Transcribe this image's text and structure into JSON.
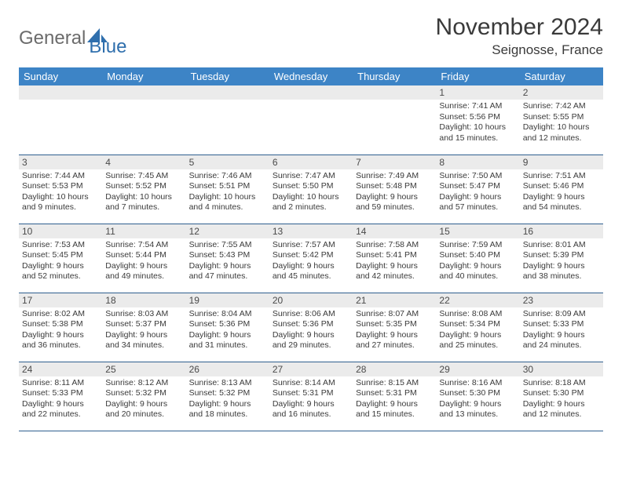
{
  "brand": {
    "part1": "General",
    "part2": "Blue"
  },
  "title": "November 2024",
  "location": "Seignosse, France",
  "colors": {
    "header_bg": "#3d84c6",
    "header_text": "#ffffff",
    "daynum_bg": "#ebebeb",
    "cell_border": "#2f5f8f",
    "text": "#3a3a3a",
    "brand_gray": "#6b6b6b",
    "brand_blue": "#2f6fad"
  },
  "weekdays": [
    "Sunday",
    "Monday",
    "Tuesday",
    "Wednesday",
    "Thursday",
    "Friday",
    "Saturday"
  ],
  "weeks": [
    [
      {},
      {},
      {},
      {},
      {},
      {
        "n": "1",
        "sunrise": "Sunrise: 7:41 AM",
        "sunset": "Sunset: 5:56 PM",
        "day1": "Daylight: 10 hours",
        "day2": "and 15 minutes."
      },
      {
        "n": "2",
        "sunrise": "Sunrise: 7:42 AM",
        "sunset": "Sunset: 5:55 PM",
        "day1": "Daylight: 10 hours",
        "day2": "and 12 minutes."
      }
    ],
    [
      {
        "n": "3",
        "sunrise": "Sunrise: 7:44 AM",
        "sunset": "Sunset: 5:53 PM",
        "day1": "Daylight: 10 hours",
        "day2": "and 9 minutes."
      },
      {
        "n": "4",
        "sunrise": "Sunrise: 7:45 AM",
        "sunset": "Sunset: 5:52 PM",
        "day1": "Daylight: 10 hours",
        "day2": "and 7 minutes."
      },
      {
        "n": "5",
        "sunrise": "Sunrise: 7:46 AM",
        "sunset": "Sunset: 5:51 PM",
        "day1": "Daylight: 10 hours",
        "day2": "and 4 minutes."
      },
      {
        "n": "6",
        "sunrise": "Sunrise: 7:47 AM",
        "sunset": "Sunset: 5:50 PM",
        "day1": "Daylight: 10 hours",
        "day2": "and 2 minutes."
      },
      {
        "n": "7",
        "sunrise": "Sunrise: 7:49 AM",
        "sunset": "Sunset: 5:48 PM",
        "day1": "Daylight: 9 hours",
        "day2": "and 59 minutes."
      },
      {
        "n": "8",
        "sunrise": "Sunrise: 7:50 AM",
        "sunset": "Sunset: 5:47 PM",
        "day1": "Daylight: 9 hours",
        "day2": "and 57 minutes."
      },
      {
        "n": "9",
        "sunrise": "Sunrise: 7:51 AM",
        "sunset": "Sunset: 5:46 PM",
        "day1": "Daylight: 9 hours",
        "day2": "and 54 minutes."
      }
    ],
    [
      {
        "n": "10",
        "sunrise": "Sunrise: 7:53 AM",
        "sunset": "Sunset: 5:45 PM",
        "day1": "Daylight: 9 hours",
        "day2": "and 52 minutes."
      },
      {
        "n": "11",
        "sunrise": "Sunrise: 7:54 AM",
        "sunset": "Sunset: 5:44 PM",
        "day1": "Daylight: 9 hours",
        "day2": "and 49 minutes."
      },
      {
        "n": "12",
        "sunrise": "Sunrise: 7:55 AM",
        "sunset": "Sunset: 5:43 PM",
        "day1": "Daylight: 9 hours",
        "day2": "and 47 minutes."
      },
      {
        "n": "13",
        "sunrise": "Sunrise: 7:57 AM",
        "sunset": "Sunset: 5:42 PM",
        "day1": "Daylight: 9 hours",
        "day2": "and 45 minutes."
      },
      {
        "n": "14",
        "sunrise": "Sunrise: 7:58 AM",
        "sunset": "Sunset: 5:41 PM",
        "day1": "Daylight: 9 hours",
        "day2": "and 42 minutes."
      },
      {
        "n": "15",
        "sunrise": "Sunrise: 7:59 AM",
        "sunset": "Sunset: 5:40 PM",
        "day1": "Daylight: 9 hours",
        "day2": "and 40 minutes."
      },
      {
        "n": "16",
        "sunrise": "Sunrise: 8:01 AM",
        "sunset": "Sunset: 5:39 PM",
        "day1": "Daylight: 9 hours",
        "day2": "and 38 minutes."
      }
    ],
    [
      {
        "n": "17",
        "sunrise": "Sunrise: 8:02 AM",
        "sunset": "Sunset: 5:38 PM",
        "day1": "Daylight: 9 hours",
        "day2": "and 36 minutes."
      },
      {
        "n": "18",
        "sunrise": "Sunrise: 8:03 AM",
        "sunset": "Sunset: 5:37 PM",
        "day1": "Daylight: 9 hours",
        "day2": "and 34 minutes."
      },
      {
        "n": "19",
        "sunrise": "Sunrise: 8:04 AM",
        "sunset": "Sunset: 5:36 PM",
        "day1": "Daylight: 9 hours",
        "day2": "and 31 minutes."
      },
      {
        "n": "20",
        "sunrise": "Sunrise: 8:06 AM",
        "sunset": "Sunset: 5:36 PM",
        "day1": "Daylight: 9 hours",
        "day2": "and 29 minutes."
      },
      {
        "n": "21",
        "sunrise": "Sunrise: 8:07 AM",
        "sunset": "Sunset: 5:35 PM",
        "day1": "Daylight: 9 hours",
        "day2": "and 27 minutes."
      },
      {
        "n": "22",
        "sunrise": "Sunrise: 8:08 AM",
        "sunset": "Sunset: 5:34 PM",
        "day1": "Daylight: 9 hours",
        "day2": "and 25 minutes."
      },
      {
        "n": "23",
        "sunrise": "Sunrise: 8:09 AM",
        "sunset": "Sunset: 5:33 PM",
        "day1": "Daylight: 9 hours",
        "day2": "and 24 minutes."
      }
    ],
    [
      {
        "n": "24",
        "sunrise": "Sunrise: 8:11 AM",
        "sunset": "Sunset: 5:33 PM",
        "day1": "Daylight: 9 hours",
        "day2": "and 22 minutes."
      },
      {
        "n": "25",
        "sunrise": "Sunrise: 8:12 AM",
        "sunset": "Sunset: 5:32 PM",
        "day1": "Daylight: 9 hours",
        "day2": "and 20 minutes."
      },
      {
        "n": "26",
        "sunrise": "Sunrise: 8:13 AM",
        "sunset": "Sunset: 5:32 PM",
        "day1": "Daylight: 9 hours",
        "day2": "and 18 minutes."
      },
      {
        "n": "27",
        "sunrise": "Sunrise: 8:14 AM",
        "sunset": "Sunset: 5:31 PM",
        "day1": "Daylight: 9 hours",
        "day2": "and 16 minutes."
      },
      {
        "n": "28",
        "sunrise": "Sunrise: 8:15 AM",
        "sunset": "Sunset: 5:31 PM",
        "day1": "Daylight: 9 hours",
        "day2": "and 15 minutes."
      },
      {
        "n": "29",
        "sunrise": "Sunrise: 8:16 AM",
        "sunset": "Sunset: 5:30 PM",
        "day1": "Daylight: 9 hours",
        "day2": "and 13 minutes."
      },
      {
        "n": "30",
        "sunrise": "Sunrise: 8:18 AM",
        "sunset": "Sunset: 5:30 PM",
        "day1": "Daylight: 9 hours",
        "day2": "and 12 minutes."
      }
    ]
  ]
}
